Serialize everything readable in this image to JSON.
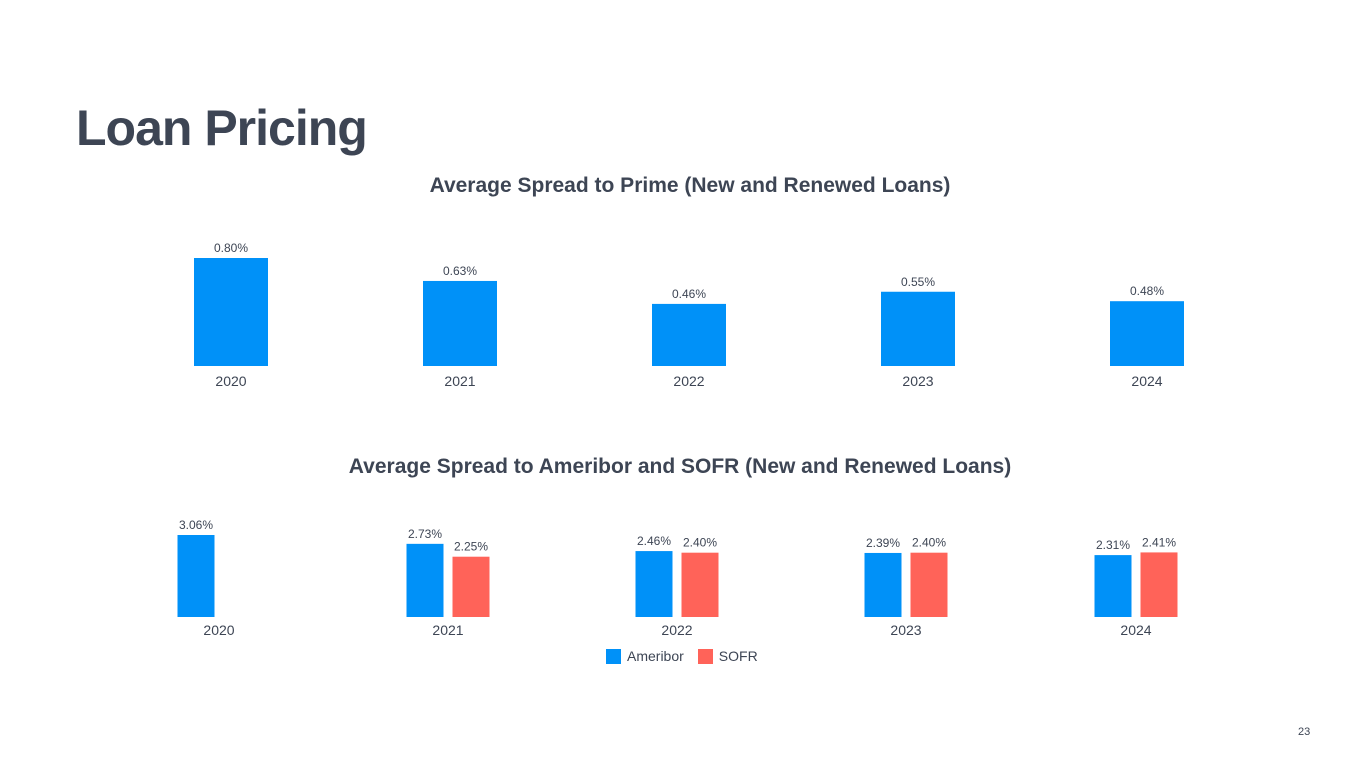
{
  "page": {
    "title": "Loan Pricing",
    "page_number": "23"
  },
  "colors": {
    "ameribor": "#0091f8",
    "sofr": "#ff6359",
    "prime": "#0091f8",
    "text": "#3d4554"
  },
  "legend": {
    "ameribor_label": "Ameribor",
    "sofr_label": "SOFR"
  },
  "chart_data": [
    {
      "type": "bar",
      "title": "Average Spread to Prime (New and Renewed Loans)",
      "categories": [
        "2020",
        "2021",
        "2022",
        "2023",
        "2024"
      ],
      "series": [
        {
          "name": "Prime",
          "values": [
            0.8,
            0.63,
            0.46,
            0.55,
            0.48
          ],
          "labels": [
            "0.80%",
            "0.63%",
            "0.46%",
            "0.55%",
            "0.48%"
          ]
        }
      ],
      "xlabel": "",
      "ylabel": "",
      "ylim": [
        0,
        0.8
      ],
      "grid": false
    },
    {
      "type": "bar",
      "title": "Average Spread to Ameribor and SOFR (New and Renewed Loans)",
      "categories": [
        "2020",
        "2021",
        "2022",
        "2023",
        "2024"
      ],
      "series": [
        {
          "name": "Ameribor",
          "values": [
            3.06,
            2.73,
            2.46,
            2.39,
            2.31
          ],
          "labels": [
            "3.06%",
            "2.73%",
            "2.46%",
            "2.39%",
            "2.31%"
          ]
        },
        {
          "name": "SOFR",
          "values": [
            null,
            2.25,
            2.4,
            2.4,
            2.41
          ],
          "labels": [
            null,
            "2.25%",
            "2.40%",
            "2.40%",
            "2.41%"
          ]
        }
      ],
      "xlabel": "",
      "ylabel": "",
      "ylim": [
        0,
        3.06
      ],
      "grid": false,
      "legend": "bottom-center"
    }
  ]
}
